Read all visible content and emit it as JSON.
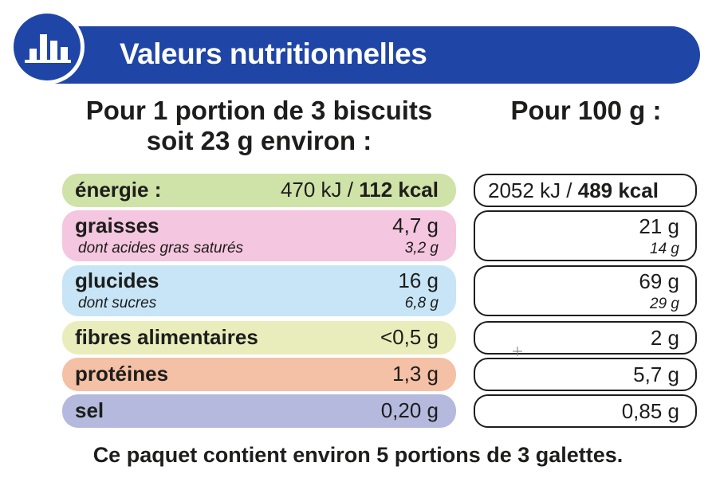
{
  "header": {
    "title": "Valeurs nutritionnelles",
    "icon": "bar-chart-icon",
    "color": "#1f45a6"
  },
  "columns": {
    "portion_line1": "Pour 1 portion de 3 biscuits",
    "portion_line2": "soit 23 g environ :",
    "per100": "Pour 100 g :"
  },
  "rows": {
    "energie": {
      "label": "énergie :",
      "portion_kj": "470 kJ / ",
      "portion_kcal": "112 kcal",
      "per100_kj": "2052 kJ / ",
      "per100_kcal": "489 kcal",
      "color": "#cfe2a8"
    },
    "graisses": {
      "label": "graisses",
      "sub_label": "dont acides gras saturés",
      "portion": "4,7 g",
      "portion_sub": "3,2 g",
      "per100": "21 g",
      "per100_sub": "14 g",
      "color": "#f4c6df"
    },
    "glucides": {
      "label": "glucides",
      "sub_label": "dont sucres",
      "portion": "16 g",
      "portion_sub": "6,8 g",
      "per100": "69 g",
      "per100_sub": "29 g",
      "color": "#c7e5f6"
    },
    "fibres": {
      "label": "fibres alimentaires",
      "portion": "<0,5 g",
      "per100": "2 g",
      "color": "#e8edbb"
    },
    "proteines": {
      "label": "protéines",
      "portion": "1,3 g",
      "per100": "5,7 g",
      "color": "#f4c0a6"
    },
    "sel": {
      "label": "sel",
      "portion": "0,20 g",
      "per100": "0,85 g",
      "color": "#b4b9dd"
    }
  },
  "footer": "Ce paquet contient environ 5 portions de 3 galettes."
}
